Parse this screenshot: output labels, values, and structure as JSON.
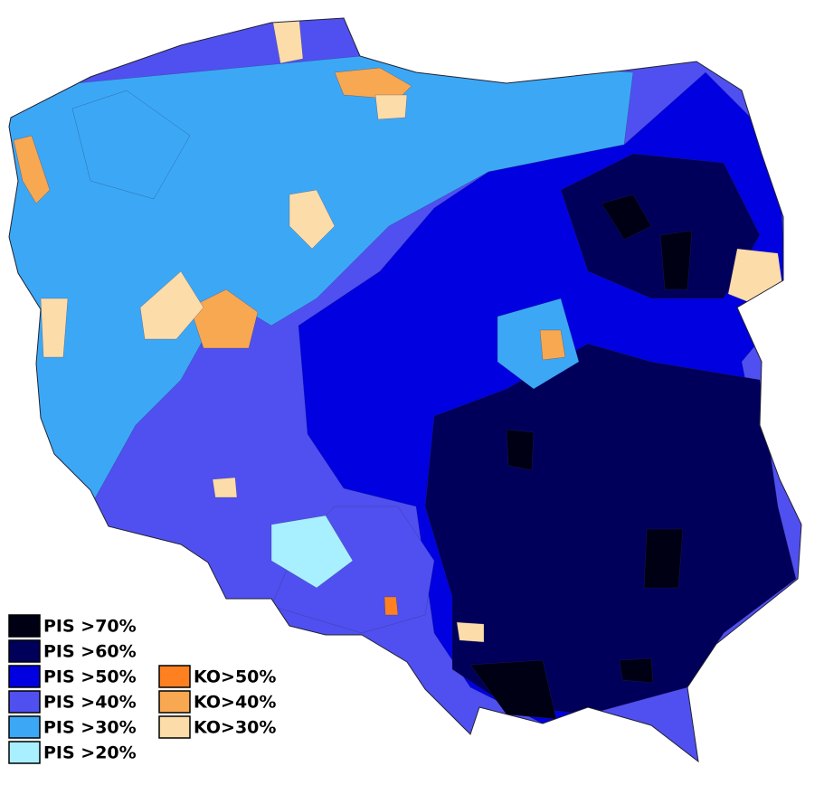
{
  "legend": {
    "pis": [
      {
        "label": "PIS >70%",
        "color": "#000014"
      },
      {
        "label": "PIS >60%",
        "color": "#00005a"
      },
      {
        "label": "PIS >50%",
        "color": "#0000e0"
      },
      {
        "label": "PIS >40%",
        "color": "#5050f0"
      },
      {
        "label": "PIS >30%",
        "color": "#3ca8f5"
      },
      {
        "label": "PIS >20%",
        "color": "#a8f0ff"
      }
    ],
    "ko": [
      {
        "label": "KO>50%",
        "color": "#ff8020"
      },
      {
        "label": "KO>40%",
        "color": "#f8a850"
      },
      {
        "label": "KO>30%",
        "color": "#fcdca8"
      }
    ]
  }
}
